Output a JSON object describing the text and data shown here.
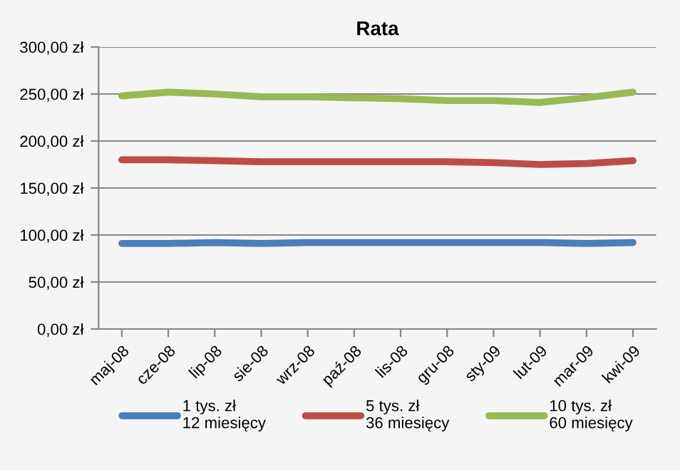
{
  "chart_data": {
    "type": "line",
    "title": "Rata",
    "categories": [
      "maj-08",
      "cze-08",
      "lip-08",
      "sie-08",
      "wrz-08",
      "paź-08",
      "lis-08",
      "gru-08",
      "sty-09",
      "lut-09",
      "mar-09",
      "kwi-09"
    ],
    "series": [
      {
        "name": "1 tys. zł\n12 miesięcy",
        "color": "#4a7ebb",
        "values": [
          91,
          91,
          92,
          91,
          92,
          92,
          92,
          92,
          92,
          92,
          91,
          92
        ]
      },
      {
        "name": "5 tys. zł\n36 miesięcy",
        "color": "#be4b48",
        "values": [
          180,
          180,
          179,
          178,
          178,
          178,
          178,
          178,
          177,
          175,
          176,
          179
        ]
      },
      {
        "name": "10 tys. zł\n60 miesięcy",
        "color": "#98b954",
        "values": [
          248,
          252,
          250,
          247,
          247,
          246,
          245,
          243,
          243,
          241,
          246,
          252
        ]
      }
    ],
    "ylim": [
      0,
      300
    ],
    "yticks": [
      {
        "value": 0,
        "label": "0,00 zł"
      },
      {
        "value": 50,
        "label": "50,00 zł"
      },
      {
        "value": 100,
        "label": "100,00 zł"
      },
      {
        "value": 150,
        "label": "150,00 zł"
      },
      {
        "value": 200,
        "label": "200,00 zł"
      },
      {
        "value": 250,
        "label": "250,00 zł"
      },
      {
        "value": 300,
        "label": "300,00 zł"
      }
    ],
    "grid": "y",
    "legend": "bottom",
    "marker": "none",
    "line_style": "solid"
  }
}
